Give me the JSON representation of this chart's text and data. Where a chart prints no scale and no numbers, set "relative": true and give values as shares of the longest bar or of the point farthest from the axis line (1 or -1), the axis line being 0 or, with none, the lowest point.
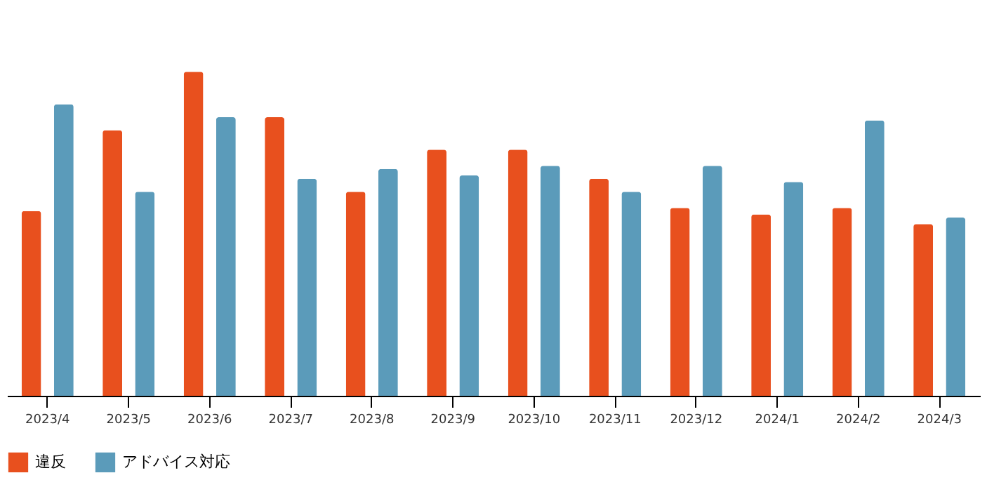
{
  "chart_data": {
    "type": "bar",
    "relative": true,
    "categories": [
      "2023/4",
      "2023/5",
      "2023/6",
      "2023/7",
      "2023/8",
      "2023/9",
      "2023/10",
      "2023/11",
      "2023/12",
      "2024/1",
      "2024/2",
      "2024/3"
    ],
    "series": [
      {
        "name": "違反",
        "color": "#e8501e",
        "values": [
          0.57,
          0.82,
          1,
          0.86,
          0.63,
          0.76,
          0.76,
          0.67,
          0.58,
          0.56,
          0.58,
          0.53
        ]
      },
      {
        "name": "アドバイス対応",
        "color": "#5b9bba",
        "values": [
          0.9,
          0.63,
          0.86,
          0.67,
          0.7,
          0.68,
          0.71,
          0.63,
          0.71,
          0.66,
          0.85,
          0.55
        ]
      }
    ],
    "legend": "bottom",
    "grid": false
  }
}
